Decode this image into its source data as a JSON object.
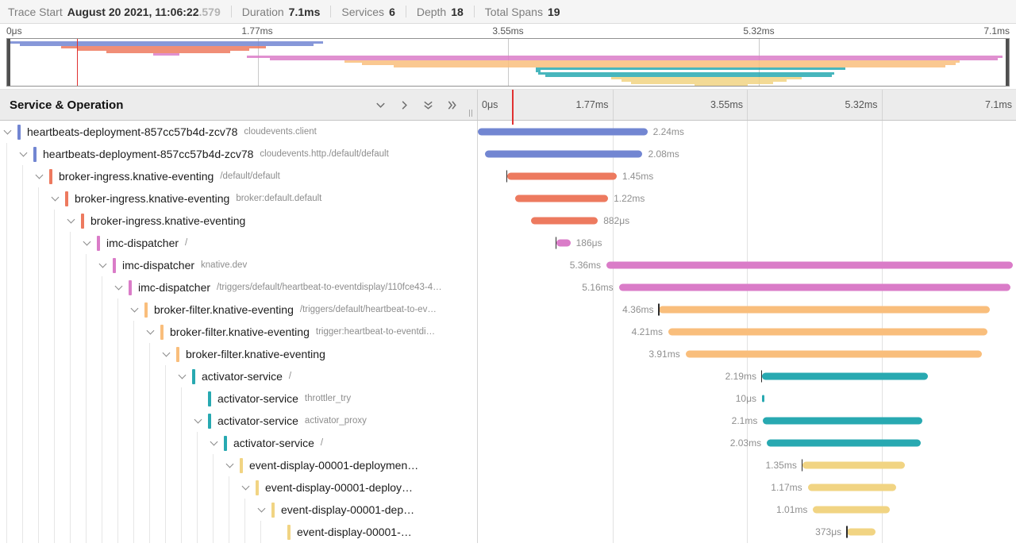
{
  "header": {
    "items": [
      {
        "label": "Trace Start",
        "value": "August 20 2021, 11:06:22",
        "suffix": ".579"
      },
      {
        "label": "Duration",
        "value": "7.1ms"
      },
      {
        "label": "Services",
        "value": "6"
      },
      {
        "label": "Depth",
        "value": "18"
      },
      {
        "label": "Total Spans",
        "value": "19"
      }
    ]
  },
  "minimap": {
    "tick_labels": [
      "0μs",
      "1.77ms",
      "3.55ms",
      "5.32ms",
      "7.1ms"
    ],
    "cursor_pct": 7.0
  },
  "columns": {
    "title": "Service & Operation",
    "toolbar_icons": [
      "collapse-one-icon",
      "expand-one-icon",
      "collapse-all-icon",
      "expand-all-icon"
    ],
    "tick_labels": [
      "0μs",
      "1.77ms",
      "3.55ms",
      "5.32ms",
      "7.1ms"
    ],
    "cursor_pct": 6.4
  },
  "colors": {
    "heartbeats": "#7286D2",
    "broker_ingress": "#ED7A5F",
    "imc_dispatcher": "#DA7CC8",
    "broker_filter": "#F9BE7C",
    "activator": "#28A9B1",
    "event_display": "#F1D483"
  },
  "spans": [
    {
      "service": "heartbeats-deployment-857cc57b4d-zcv78",
      "operation": "cloudevents.client",
      "depth": 0,
      "duration": "2.24ms",
      "color": "heartbeats",
      "start_pct": 0,
      "width_pct": 31.5,
      "label_side": "right",
      "chevron": true,
      "tick": false
    },
    {
      "service": "heartbeats-deployment-857cc57b4d-zcv78",
      "operation": "cloudevents.http./default/default",
      "depth": 1,
      "duration": "2.08ms",
      "color": "heartbeats",
      "start_pct": 1.3,
      "width_pct": 29.3,
      "label_side": "right",
      "chevron": true,
      "tick": false
    },
    {
      "service": "broker-ingress.knative-eventing",
      "operation": "/default/default",
      "depth": 2,
      "duration": "1.45ms",
      "color": "broker_ingress",
      "start_pct": 5.4,
      "width_pct": 20.4,
      "label_side": "right",
      "chevron": true,
      "tick": true
    },
    {
      "service": "broker-ingress.knative-eventing",
      "operation": "broker:default.default",
      "depth": 3,
      "duration": "1.22ms",
      "color": "broker_ingress",
      "start_pct": 7.0,
      "width_pct": 17.2,
      "label_side": "right",
      "chevron": true,
      "tick": false
    },
    {
      "service": "broker-ingress.knative-eventing",
      "operation": "",
      "depth": 4,
      "duration": "882μs",
      "color": "broker_ingress",
      "start_pct": 9.9,
      "width_pct": 12.4,
      "label_side": "right",
      "chevron": true,
      "tick": false
    },
    {
      "service": "imc-dispatcher",
      "operation": "/",
      "depth": 5,
      "duration": "186μs",
      "color": "imc_dispatcher",
      "start_pct": 14.6,
      "width_pct": 2.6,
      "label_side": "right",
      "chevron": true,
      "tick": true
    },
    {
      "service": "imc-dispatcher",
      "operation": "knative.dev",
      "depth": 6,
      "duration": "5.36ms",
      "color": "imc_dispatcher",
      "start_pct": 23.9,
      "width_pct": 75.5,
      "label_side": "left",
      "chevron": true,
      "tick": false
    },
    {
      "service": "imc-dispatcher",
      "operation": "/triggers/default/heartbeat-to-eventdisplay/110fce43-4…",
      "depth": 7,
      "duration": "5.16ms",
      "color": "imc_dispatcher",
      "start_pct": 26.2,
      "width_pct": 72.7,
      "label_side": "left",
      "chevron": true,
      "tick": false
    },
    {
      "service": "broker-filter.knative-eventing",
      "operation": "/triggers/default/heartbeat-to-ev…",
      "depth": 8,
      "duration": "4.36ms",
      "color": "broker_filter",
      "start_pct": 33.7,
      "width_pct": 61.4,
      "label_side": "left",
      "chevron": true,
      "tick": true
    },
    {
      "service": "broker-filter.knative-eventing",
      "operation": "trigger:heartbeat-to-eventdi…",
      "depth": 9,
      "duration": "4.21ms",
      "color": "broker_filter",
      "start_pct": 35.4,
      "width_pct": 59.3,
      "label_side": "left",
      "chevron": true,
      "tick": false
    },
    {
      "service": "broker-filter.knative-eventing",
      "operation": "",
      "depth": 10,
      "duration": "3.91ms",
      "color": "broker_filter",
      "start_pct": 38.6,
      "width_pct": 55.1,
      "label_side": "left",
      "chevron": true,
      "tick": false
    },
    {
      "service": "activator-service",
      "operation": "/",
      "depth": 11,
      "duration": "2.19ms",
      "color": "activator",
      "start_pct": 52.8,
      "width_pct": 30.9,
      "label_side": "left",
      "chevron": true,
      "tick": true
    },
    {
      "service": "activator-service",
      "operation": "throttler_try",
      "depth": 12,
      "duration": "10μs",
      "color": "activator",
      "start_pct": 52.8,
      "width_pct": 0.45,
      "label_side": "left",
      "chevron": false,
      "tick": false
    },
    {
      "service": "activator-service",
      "operation": "activator_proxy",
      "depth": 12,
      "duration": "2.1ms",
      "color": "activator",
      "start_pct": 53.0,
      "width_pct": 29.6,
      "label_side": "left",
      "chevron": true,
      "tick": false
    },
    {
      "service": "activator-service",
      "operation": "/",
      "depth": 13,
      "duration": "2.03ms",
      "color": "activator",
      "start_pct": 53.7,
      "width_pct": 28.6,
      "label_side": "left",
      "chevron": true,
      "tick": false
    },
    {
      "service": "event-display-00001-deploymen…",
      "operation": "",
      "depth": 14,
      "duration": "1.35ms",
      "color": "event_display",
      "start_pct": 60.3,
      "width_pct": 19.0,
      "label_side": "left",
      "chevron": true,
      "tick": true
    },
    {
      "service": "event-display-00001-deploy…",
      "operation": "",
      "depth": 15,
      "duration": "1.17ms",
      "color": "event_display",
      "start_pct": 61.3,
      "width_pct": 16.5,
      "label_side": "left",
      "chevron": true,
      "tick": false
    },
    {
      "service": "event-display-00001-dep…",
      "operation": "",
      "depth": 16,
      "duration": "1.01ms",
      "color": "event_display",
      "start_pct": 62.3,
      "width_pct": 14.2,
      "label_side": "left",
      "chevron": true,
      "tick": false
    },
    {
      "service": "event-display-00001-…",
      "operation": "",
      "depth": 17,
      "duration": "373μs",
      "color": "event_display",
      "start_pct": 68.6,
      "width_pct": 5.3,
      "label_side": "left",
      "chevron": false,
      "tick": true
    }
  ]
}
